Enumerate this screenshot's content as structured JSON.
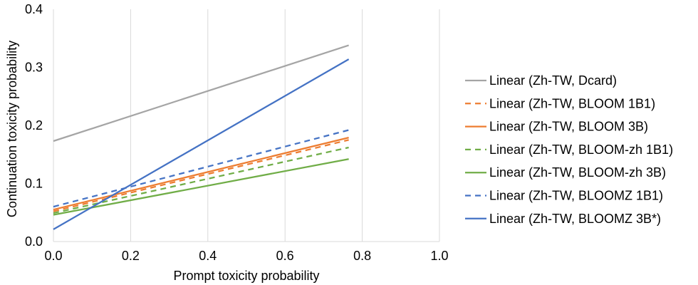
{
  "chart_data": {
    "type": "line",
    "title": "",
    "xlabel": "Prompt toxicity probability",
    "ylabel": "Continuation toxicity probability",
    "xlim": [
      0.0,
      1.0
    ],
    "ylim": [
      0.0,
      0.4
    ],
    "xticks": [
      "0.0",
      "0.2",
      "0.4",
      "0.6",
      "0.8",
      "1.0"
    ],
    "yticks": [
      "0.0",
      "0.1",
      "0.2",
      "0.3",
      "0.4"
    ],
    "grid": "vertical",
    "legend_position": "right",
    "series": [
      {
        "name": "Linear (Zh-TW, Dcard)",
        "color": "#a5a5a5",
        "dash": "solid",
        "x": [
          0.0,
          0.765
        ],
        "y": [
          0.173,
          0.338
        ]
      },
      {
        "name": "Linear (Zh-TW, BLOOM 1B1)",
        "color": "#ed7d31",
        "dash": "dashed",
        "x": [
          0.0,
          0.765
        ],
        "y": [
          0.052,
          0.175
        ]
      },
      {
        "name": "Linear (Zh-TW, BLOOM 3B)",
        "color": "#ed7d31",
        "dash": "solid",
        "x": [
          0.0,
          0.765
        ],
        "y": [
          0.055,
          0.179
        ]
      },
      {
        "name": "Linear (Zh-TW, BLOOM-zh 1B1)",
        "color": "#70ad47",
        "dash": "dashed",
        "x": [
          0.0,
          0.765
        ],
        "y": [
          0.049,
          0.162
        ]
      },
      {
        "name": "Linear (Zh-TW, BLOOM-zh 3B)",
        "color": "#70ad47",
        "dash": "solid",
        "x": [
          0.0,
          0.765
        ],
        "y": [
          0.046,
          0.142
        ]
      },
      {
        "name": "Linear (Zh-TW, BLOOMZ 1B1)",
        "color": "#4472c4",
        "dash": "dashed",
        "x": [
          0.0,
          0.765
        ],
        "y": [
          0.06,
          0.192
        ]
      },
      {
        "name": "Linear (Zh-TW, BLOOMZ 3B*)",
        "color": "#4472c4",
        "dash": "solid",
        "x": [
          0.0,
          0.765
        ],
        "y": [
          0.021,
          0.314
        ]
      }
    ]
  }
}
